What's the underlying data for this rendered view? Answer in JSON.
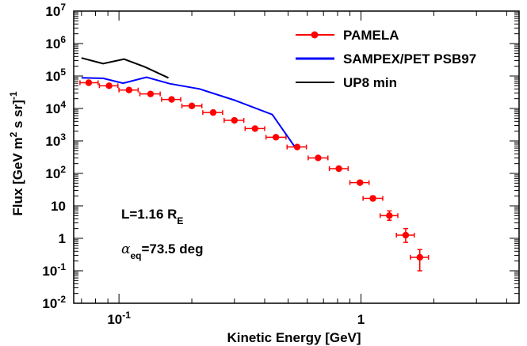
{
  "chart_data": {
    "type": "line",
    "xlabel": "Kinetic Energy [GeV]",
    "ylabel_parts": {
      "pre": "Flux [GeV m",
      "sup1": "2",
      "mid": " s sr]",
      "sup2": "-1"
    },
    "x_scale": "log",
    "y_scale": "log",
    "xlim": [
      0.065,
      4.5
    ],
    "ylim": [
      0.01,
      10000000
    ],
    "x_tick_labels": [
      {
        "value": 0.1,
        "base": "10",
        "exp": "-1"
      },
      {
        "value": 1,
        "base": "1",
        "exp": ""
      }
    ],
    "y_tick_labels": [
      {
        "value": 10000000,
        "base": "10",
        "exp": "7"
      },
      {
        "value": 1000000,
        "base": "10",
        "exp": "6"
      },
      {
        "value": 100000,
        "base": "10",
        "exp": "5"
      },
      {
        "value": 10000,
        "base": "10",
        "exp": "4"
      },
      {
        "value": 1000,
        "base": "10",
        "exp": "3"
      },
      {
        "value": 100,
        "base": "10",
        "exp": "2"
      },
      {
        "value": 10,
        "base": "10",
        "exp": ""
      },
      {
        "value": 1,
        "base": "1",
        "exp": ""
      },
      {
        "value": 0.1,
        "base": "10",
        "exp": "-1"
      },
      {
        "value": 0.01,
        "base": "10",
        "exp": "-2"
      }
    ],
    "grid": false,
    "legend_position": "top-right",
    "series": [
      {
        "name": "PAMELA",
        "color": "#ff0000",
        "style": "points-with-errorbars",
        "points": [
          {
            "x": 0.075,
            "y": 62000,
            "xlo": 0.069,
            "xhi": 0.082,
            "ylo": 62000,
            "yhi": 62000
          },
          {
            "x": 0.091,
            "y": 50000,
            "xlo": 0.083,
            "xhi": 0.099,
            "ylo": 50000,
            "yhi": 50000
          },
          {
            "x": 0.11,
            "y": 37000,
            "xlo": 0.1,
            "xhi": 0.12,
            "ylo": 37000,
            "yhi": 37000
          },
          {
            "x": 0.135,
            "y": 28000,
            "xlo": 0.122,
            "xhi": 0.148,
            "ylo": 28000,
            "yhi": 28000
          },
          {
            "x": 0.165,
            "y": 19000,
            "xlo": 0.15,
            "xhi": 0.18,
            "ylo": 19000,
            "yhi": 19000
          },
          {
            "x": 0.2,
            "y": 12000,
            "xlo": 0.182,
            "xhi": 0.22,
            "ylo": 12000,
            "yhi": 12000
          },
          {
            "x": 0.245,
            "y": 7500,
            "xlo": 0.222,
            "xhi": 0.268,
            "ylo": 7500,
            "yhi": 7500
          },
          {
            "x": 0.3,
            "y": 4300,
            "xlo": 0.272,
            "xhi": 0.328,
            "ylo": 4300,
            "yhi": 4300
          },
          {
            "x": 0.365,
            "y": 2400,
            "xlo": 0.332,
            "xhi": 0.4,
            "ylo": 2400,
            "yhi": 2400
          },
          {
            "x": 0.445,
            "y": 1300,
            "xlo": 0.405,
            "xhi": 0.49,
            "ylo": 1300,
            "yhi": 1300
          },
          {
            "x": 0.545,
            "y": 650,
            "xlo": 0.495,
            "xhi": 0.595,
            "ylo": 650,
            "yhi": 650
          },
          {
            "x": 0.665,
            "y": 300,
            "xlo": 0.605,
            "xhi": 0.73,
            "ylo": 300,
            "yhi": 300
          },
          {
            "x": 0.81,
            "y": 140,
            "xlo": 0.74,
            "xhi": 0.885,
            "ylo": 140,
            "yhi": 140
          },
          {
            "x": 0.99,
            "y": 52,
            "xlo": 0.9,
            "xhi": 1.08,
            "ylo": 52,
            "yhi": 52
          },
          {
            "x": 1.12,
            "y": 17,
            "xlo": 1.02,
            "xhi": 1.23,
            "ylo": 14.5,
            "yhi": 20
          },
          {
            "x": 1.31,
            "y": 5,
            "xlo": 1.2,
            "xhi": 1.42,
            "ylo": 3.6,
            "yhi": 7
          },
          {
            "x": 1.53,
            "y": 1.25,
            "xlo": 1.4,
            "xhi": 1.66,
            "ylo": 0.75,
            "yhi": 2.0
          },
          {
            "x": 1.75,
            "y": 0.26,
            "xlo": 1.6,
            "xhi": 1.9,
            "ylo": 0.1,
            "yhi": 0.45
          }
        ]
      },
      {
        "name": "SAMPEX/PET PSB97",
        "color": "#0000ff",
        "style": "line",
        "x": [
          0.07,
          0.086,
          0.104,
          0.13,
          0.162,
          0.215,
          0.3,
          0.43,
          0.53
        ],
        "y": [
          88000,
          85000,
          60000,
          92000,
          58000,
          40000,
          18000,
          6500,
          700
        ]
      },
      {
        "name": "UP8 min",
        "color": "#000000",
        "style": "line",
        "x": [
          0.07,
          0.086,
          0.105,
          0.128,
          0.16
        ],
        "y": [
          360000,
          240000,
          330000,
          190000,
          88000
        ]
      }
    ],
    "annotations": [
      {
        "text_parts": {
          "main": "L=1.16 R",
          "sub": "E",
          "after": ""
        }
      },
      {
        "text_parts": {
          "main": "α",
          "sub": "eq",
          "after": "=73.5 deg"
        }
      }
    ]
  }
}
